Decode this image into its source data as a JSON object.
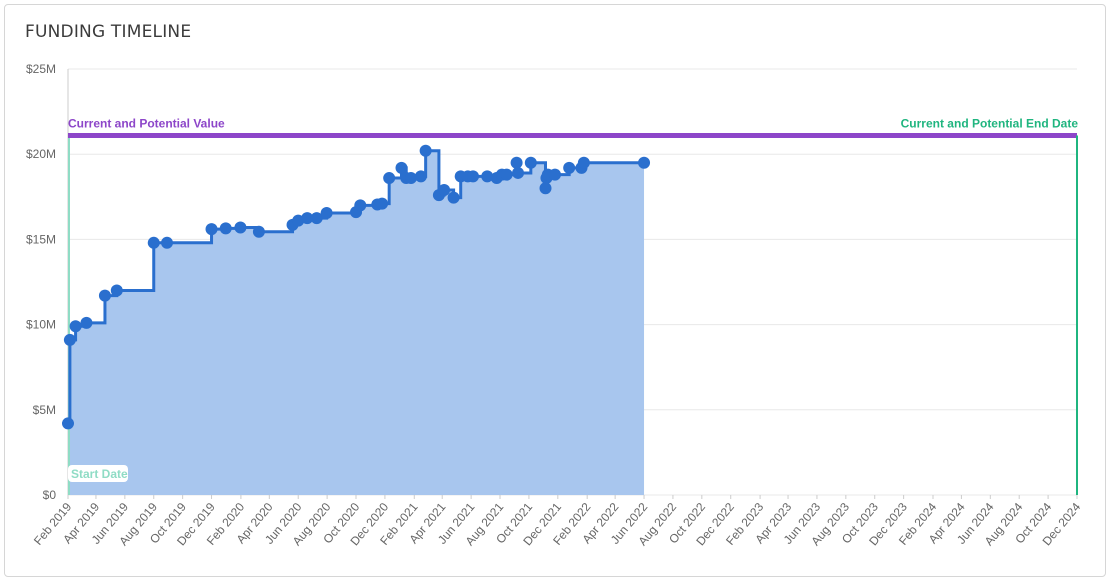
{
  "card": {
    "title": "FUNDING TIMELINE"
  },
  "colors": {
    "area_fill": "#a8c6ee",
    "series_line": "#2a6fce",
    "marker": "#2a6fce",
    "potential_value": "#8d46c9",
    "end_date": "#1fb57f",
    "start_date": "#8fdcc5",
    "grid": "#e8e8e8",
    "axis_text": "#666666"
  },
  "chart_data": {
    "type": "area",
    "step": true,
    "ylim": [
      0,
      25000000
    ],
    "xlim": [
      "2019-02-01",
      "2024-12-01"
    ],
    "y_ticks": [
      {
        "value": 0,
        "label": "$0"
      },
      {
        "value": 5000000,
        "label": "$5M"
      },
      {
        "value": 10000000,
        "label": "$10M"
      },
      {
        "value": 15000000,
        "label": "$15M"
      },
      {
        "value": 20000000,
        "label": "$20M"
      },
      {
        "value": 25000000,
        "label": "$25M"
      }
    ],
    "x_ticks": [
      "Feb 2019",
      "Apr 2019",
      "Jun 2019",
      "Aug 2019",
      "Oct 2019",
      "Dec 2019",
      "Feb 2020",
      "Apr 2020",
      "Jun 2020",
      "Aug 2020",
      "Oct 2020",
      "Dec 2020",
      "Feb 2021",
      "Apr 2021",
      "Jun 2021",
      "Aug 2021",
      "Oct 2021",
      "Dec 2021",
      "Feb 2022",
      "Apr 2022",
      "Jun 2022",
      "Aug 2022",
      "Oct 2022",
      "Dec 2022",
      "Feb 2023",
      "Apr 2023",
      "Jun 2023",
      "Aug 2023",
      "Oct 2023",
      "Dec 2023",
      "Feb 2024",
      "Apr 2024",
      "Jun 2024",
      "Aug 2024",
      "Oct 2024",
      "Dec 2024"
    ],
    "grid": true,
    "series": [
      {
        "points": [
          {
            "x": "2019-02-01",
            "y": 4200000
          },
          {
            "x": "2019-02-05",
            "y": 9100000
          },
          {
            "x": "2019-02-17",
            "y": 9900000
          },
          {
            "x": "2019-03-12",
            "y": 10100000
          },
          {
            "x": "2019-04-20",
            "y": 11700000
          },
          {
            "x": "2019-05-15",
            "y": 12000000
          },
          {
            "x": "2019-08-01",
            "y": 14800000
          },
          {
            "x": "2019-08-29",
            "y": 14800000
          },
          {
            "x": "2019-12-01",
            "y": 15600000
          },
          {
            "x": "2019-12-31",
            "y": 15650000
          },
          {
            "x": "2020-01-31",
            "y": 15700000
          },
          {
            "x": "2020-03-10",
            "y": 15450000
          },
          {
            "x": "2020-05-20",
            "y": 15850000
          },
          {
            "x": "2020-06-01",
            "y": 16100000
          },
          {
            "x": "2020-06-20",
            "y": 16250000
          },
          {
            "x": "2020-07-10",
            "y": 16250000
          },
          {
            "x": "2020-07-31",
            "y": 16550000
          },
          {
            "x": "2020-10-01",
            "y": 16600000
          },
          {
            "x": "2020-10-10",
            "y": 17000000
          },
          {
            "x": "2020-11-15",
            "y": 17050000
          },
          {
            "x": "2020-11-25",
            "y": 17100000
          },
          {
            "x": "2020-12-10",
            "y": 18600000
          },
          {
            "x": "2021-01-05",
            "y": 19200000
          },
          {
            "x": "2021-01-15",
            "y": 18600000
          },
          {
            "x": "2021-01-25",
            "y": 18600000
          },
          {
            "x": "2021-02-15",
            "y": 18700000
          },
          {
            "x": "2021-02-25",
            "y": 20200000
          },
          {
            "x": "2021-03-25",
            "y": 17600000
          },
          {
            "x": "2021-04-05",
            "y": 17900000
          },
          {
            "x": "2021-04-25",
            "y": 17450000
          },
          {
            "x": "2021-05-10",
            "y": 18700000
          },
          {
            "x": "2021-05-25",
            "y": 18700000
          },
          {
            "x": "2021-06-05",
            "y": 18700000
          },
          {
            "x": "2021-07-05",
            "y": 18700000
          },
          {
            "x": "2021-07-25",
            "y": 18600000
          },
          {
            "x": "2021-08-05",
            "y": 18800000
          },
          {
            "x": "2021-08-15",
            "y": 18800000
          },
          {
            "x": "2021-09-05",
            "y": 19500000
          },
          {
            "x": "2021-09-08",
            "y": 18900000
          },
          {
            "x": "2021-10-05",
            "y": 19500000
          },
          {
            "x": "2021-11-05",
            "y": 18000000
          },
          {
            "x": "2021-11-07",
            "y": 18600000
          },
          {
            "x": "2021-11-10",
            "y": 18800000
          },
          {
            "x": "2021-11-25",
            "y": 18800000
          },
          {
            "x": "2021-12-25",
            "y": 19200000
          },
          {
            "x": "2022-01-20",
            "y": 19200000
          },
          {
            "x": "2022-01-25",
            "y": 19500000
          },
          {
            "x": "2022-06-01",
            "y": 19500000
          }
        ]
      }
    ],
    "annotations": {
      "potential_value": {
        "label": "Current and Potential Value",
        "y": 21100000
      },
      "end_date": {
        "label": "Current and Potential End Date",
        "x": "2024-12-01"
      },
      "start_date": {
        "label": "Start Date",
        "x": "2019-02-01"
      }
    }
  }
}
